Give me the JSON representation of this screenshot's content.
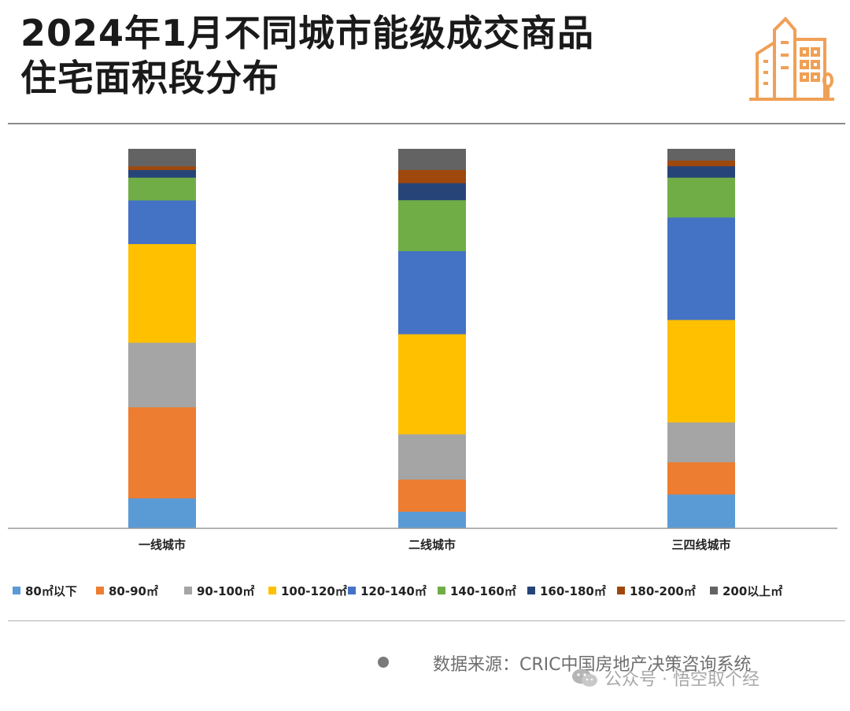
{
  "header": {
    "title_line1": "2024年1月不同城市能级成交商品",
    "title_line2": "住宅面积段分布",
    "logo_icon": "city-buildings-icon",
    "accent_color": "#F0A056"
  },
  "chart_data": {
    "type": "bar",
    "stacked": true,
    "normalized": true,
    "title": "2024年1月不同城市能级成交商品住宅面积段分布",
    "categories": [
      "一线城市",
      "二线城市",
      "三四线城市"
    ],
    "ylim": [
      0,
      100
    ],
    "legend_position": "bottom",
    "grid": false,
    "series": [
      {
        "name": "80㎡以下",
        "color": "#5B9BD5",
        "values": [
          8,
          4.5,
          9
        ]
      },
      {
        "name": "80-90㎡",
        "color": "#ED7D31",
        "values": [
          24,
          8.5,
          8.5
        ]
      },
      {
        "name": "90-100㎡",
        "color": "#A5A5A5",
        "values": [
          17,
          12,
          10.5
        ]
      },
      {
        "name": "100-120㎡",
        "color": "#FFC000",
        "values": [
          26,
          26.5,
          27
        ]
      },
      {
        "name": "120-140㎡",
        "color": "#4472C4",
        "values": [
          11.5,
          22,
          27
        ]
      },
      {
        "name": "140-160㎡",
        "color": "#70AD47",
        "values": [
          6,
          13.5,
          10.5
        ]
      },
      {
        "name": "160-180㎡",
        "color": "#264478",
        "values": [
          2,
          4.5,
          3
        ]
      },
      {
        "name": "180-200㎡",
        "color": "#9E480E",
        "values": [
          1,
          3.5,
          1.5
        ]
      },
      {
        "name": "200以上㎡",
        "color": "#636363",
        "values": [
          4.5,
          5.5,
          3
        ]
      }
    ]
  },
  "footer": {
    "source": "数据来源：CRIC中国房地产决策咨询系统",
    "watermark": "公众号 · 悟空取个经",
    "watermark_icon": "wechat-icon"
  }
}
